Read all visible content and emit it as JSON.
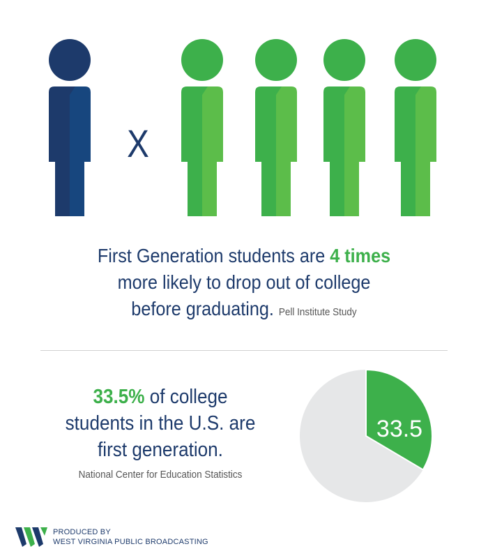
{
  "colors": {
    "navy": "#1d3a6b",
    "navy_light": "#17467e",
    "green": "#3db04b",
    "green_light": "#5cbd4a",
    "pie_rest": "#e6e7e8"
  },
  "icons": {
    "highlighted_person": "person-icon",
    "comparison_persons": [
      "person-icon",
      "person-icon",
      "person-icon",
      "person-icon"
    ]
  },
  "multiplier_symbol": "X",
  "stat1": {
    "before": "First Generation students are ",
    "highlight": "4 times",
    "line2": "more likely to drop out of college",
    "line3": "before graduating.",
    "source": "Pell Institute Study"
  },
  "stat2": {
    "highlight": "33.5%",
    "after": " of college",
    "line2": "students in the U.S. are",
    "line3": "first generation.",
    "source": "National Center for Education Statistics"
  },
  "pie": {
    "label": "33.5",
    "percent": 33.5
  },
  "footer": {
    "line1": "PRODUCED BY",
    "line2": "WEST VIRGINIA PUBLIC BROADCASTING"
  }
}
